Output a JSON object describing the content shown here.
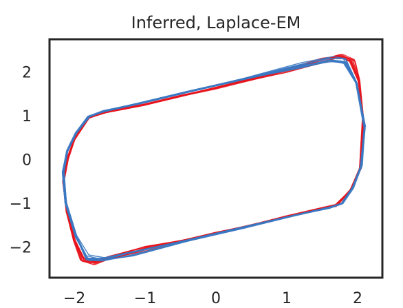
{
  "chart_data": {
    "type": "line",
    "title": "Inferred, Laplace-EM",
    "xlabel": "",
    "ylabel": "",
    "xlim": [
      -2.35,
      2.35
    ],
    "ylim": [
      -2.7,
      2.75
    ],
    "xticks": [
      -2,
      -1,
      0,
      1,
      2
    ],
    "yticks": [
      -2,
      -1,
      0,
      1,
      2
    ],
    "xtick_labels": [
      "−2",
      "−1",
      "0",
      "1",
      "2"
    ],
    "ytick_labels": [
      "−2",
      "−1",
      "0",
      "1",
      "2"
    ],
    "grid": false,
    "legend": "none",
    "colors": {
      "red": "#e8141c",
      "blue": "#3a78c2",
      "frame": "#262626",
      "text": "#262626"
    },
    "series": [
      {
        "color_key": "red",
        "points": [
          [
            2.08,
            0.9
          ],
          [
            2.04,
            -0.2
          ],
          [
            1.9,
            -0.7
          ],
          [
            1.7,
            -1.05
          ],
          [
            1.5,
            -1.12
          ],
          [
            1.0,
            -1.3
          ],
          [
            0.5,
            -1.5
          ],
          [
            0.0,
            -1.68
          ],
          [
            -0.5,
            -1.87
          ],
          [
            -1.0,
            -2.05
          ],
          [
            -1.5,
            -2.26
          ],
          [
            -1.72,
            -2.35
          ],
          [
            -1.88,
            -2.3
          ],
          [
            -2.0,
            -1.85
          ],
          [
            -2.1,
            -1.2
          ],
          [
            -2.15,
            -0.5
          ],
          [
            -2.1,
            0.0
          ],
          [
            -2.0,
            0.45
          ],
          [
            -1.8,
            0.95
          ],
          [
            -1.55,
            1.08
          ],
          [
            -1.0,
            1.25
          ],
          [
            -0.5,
            1.45
          ],
          [
            0.0,
            1.63
          ],
          [
            0.5,
            1.83
          ],
          [
            1.0,
            2.03
          ],
          [
            1.5,
            2.25
          ],
          [
            1.75,
            2.35
          ],
          [
            1.92,
            2.25
          ],
          [
            2.02,
            1.8
          ],
          [
            2.08,
            0.9
          ]
        ]
      },
      {
        "color_key": "blue",
        "points": [
          [
            2.1,
            0.75
          ],
          [
            2.05,
            -0.15
          ],
          [
            1.93,
            -0.65
          ],
          [
            1.78,
            -1.0
          ],
          [
            1.6,
            -1.1
          ],
          [
            1.1,
            -1.28
          ],
          [
            0.4,
            -1.55
          ],
          [
            -0.4,
            -1.85
          ],
          [
            -1.2,
            -2.15
          ],
          [
            -1.6,
            -2.28
          ],
          [
            -1.82,
            -2.25
          ],
          [
            -1.98,
            -1.75
          ],
          [
            -2.12,
            -1.0
          ],
          [
            -2.16,
            -0.3
          ],
          [
            -2.1,
            0.2
          ],
          [
            -1.98,
            0.6
          ],
          [
            -1.8,
            0.98
          ],
          [
            -1.6,
            1.1
          ],
          [
            -1.1,
            1.28
          ],
          [
            -0.4,
            1.55
          ],
          [
            0.4,
            1.85
          ],
          [
            1.2,
            2.15
          ],
          [
            1.6,
            2.28
          ],
          [
            1.82,
            2.25
          ],
          [
            1.98,
            1.75
          ],
          [
            2.1,
            0.75
          ]
        ]
      }
    ]
  }
}
